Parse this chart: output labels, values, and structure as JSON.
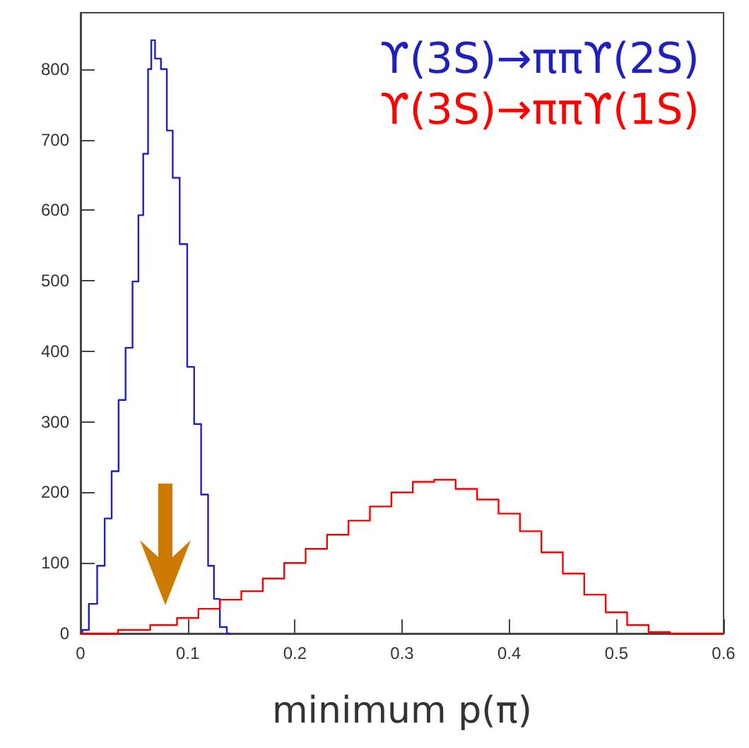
{
  "chart_data": {
    "type": "step",
    "xlabel": "minimum p(π)",
    "xlim": [
      0,
      0.6
    ],
    "xticks": [
      0,
      0.1,
      0.2,
      0.3,
      0.4,
      0.5,
      0.6
    ],
    "ylim": [
      0,
      880
    ],
    "yticks": [
      0,
      100,
      200,
      300,
      400,
      500,
      600,
      700,
      800
    ],
    "grid": false,
    "legend": "top right",
    "series": [
      {
        "name": "ϒ(3S)→ππϒ(2S)",
        "color": "#2020c0",
        "x": [
          0,
          0.0035,
          0.012,
          0.019,
          0.026,
          0.032,
          0.039,
          0.045,
          0.052,
          0.056,
          0.061,
          0.065,
          0.067,
          0.072,
          0.078,
          0.083,
          0.089,
          0.096,
          0.103,
          0.109,
          0.116,
          0.122,
          0.127,
          0.133,
          0.14
        ],
        "values": [
          0,
          5,
          42,
          96,
          163,
          230,
          331,
          405,
          499,
          593,
          680,
          800,
          841,
          815,
          800,
          713,
          646,
          552,
          378,
          297,
          197,
          96,
          49,
          9,
          0
        ]
      },
      {
        "name": "ϒ(3S)→ππϒ(1S)",
        "color": "#ff0000",
        "x": [
          0,
          0.02,
          0.05,
          0.08,
          0.1,
          0.12,
          0.14,
          0.16,
          0.18,
          0.2,
          0.22,
          0.24,
          0.26,
          0.28,
          0.3,
          0.32,
          0.34,
          0.36,
          0.38,
          0.4,
          0.42,
          0.44,
          0.46,
          0.48,
          0.5,
          0.52,
          0.54,
          0.56,
          0.6
        ],
        "values": [
          0,
          0,
          5,
          12,
          22,
          35,
          48,
          60,
          78,
          100,
          120,
          140,
          160,
          180,
          200,
          215,
          218,
          205,
          190,
          170,
          145,
          115,
          85,
          55,
          30,
          12,
          2,
          0,
          0
        ]
      }
    ]
  }
}
